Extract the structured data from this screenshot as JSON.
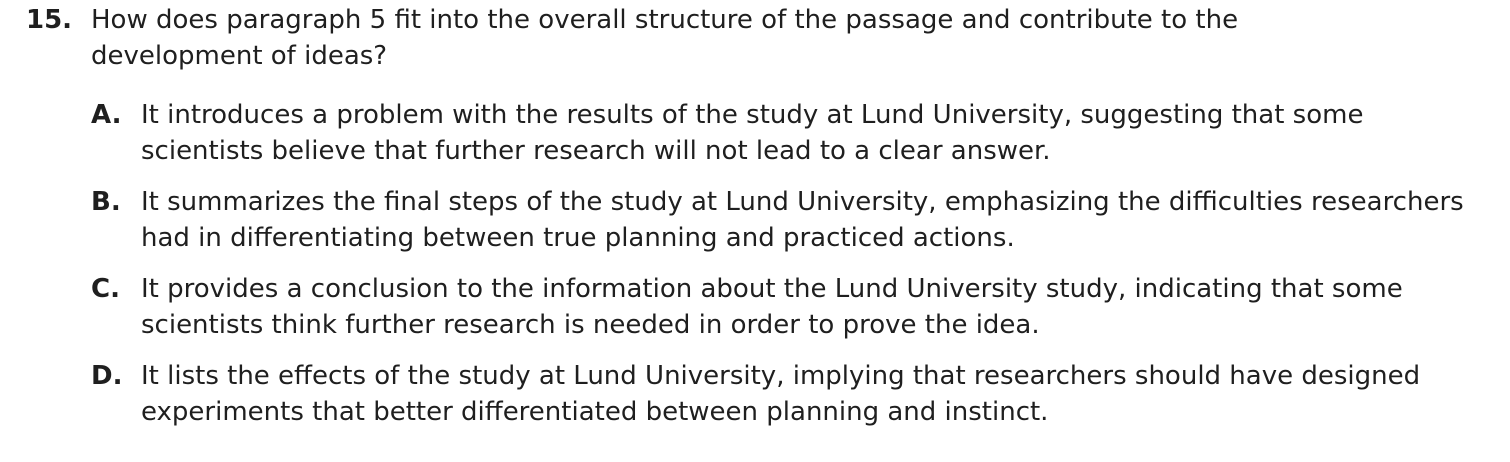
{
  "question": {
    "number": "15.",
    "stem": "How does paragraph 5 fit into the overall structure of the passage and contribute to the development of ideas?",
    "options": [
      {
        "letter": "A.",
        "text": "It introduces a problem with the results of the study at Lund University, suggesting that some scientists believe that further research will not lead to a clear answer."
      },
      {
        "letter": "B.",
        "text": "It summarizes the final steps of the study at Lund University, emphasizing the difficulties researchers had in differentiating between true planning and practiced actions."
      },
      {
        "letter": "C.",
        "text": "It provides a conclusion to the information about the Lund University study, indicating that some scientists think further research is needed in order to prove the idea."
      },
      {
        "letter": "D.",
        "text": "It lists the effects of the study at Lund University, implying that researchers should have designed experiments that better differentiated between planning and instinct."
      }
    ]
  }
}
